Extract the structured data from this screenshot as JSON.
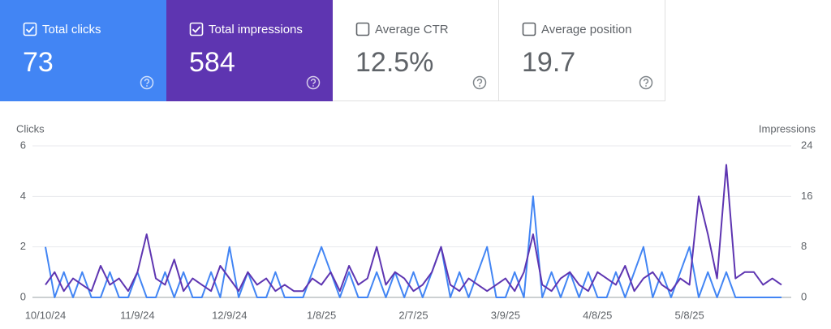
{
  "metrics": [
    {
      "label": "Total clicks",
      "value": "73",
      "checked": true,
      "color": "#4285f4"
    },
    {
      "label": "Total impressions",
      "value": "584",
      "checked": true,
      "color": "#5e35b1"
    },
    {
      "label": "Average CTR",
      "value": "12.5%",
      "checked": false,
      "color": "#ffffff"
    },
    {
      "label": "Average position",
      "value": "19.7",
      "checked": false,
      "color": "#ffffff"
    }
  ],
  "chart_data": {
    "type": "line",
    "y_label": "Clicks",
    "y2_label": "Impressions",
    "x": [
      "10/10/24",
      "10/13/24",
      "10/16/24",
      "10/19/24",
      "10/22/24",
      "10/25/24",
      "10/28/24",
      "10/31/24",
      "11/3/24",
      "11/6/24",
      "11/9/24",
      "11/12/24",
      "11/15/24",
      "11/18/24",
      "11/21/24",
      "11/24/24",
      "11/27/24",
      "11/30/24",
      "12/3/24",
      "12/6/24",
      "12/9/24",
      "12/12/24",
      "12/15/24",
      "12/18/24",
      "12/21/24",
      "12/24/24",
      "12/27/24",
      "12/30/24",
      "1/2/25",
      "1/5/25",
      "1/8/25",
      "1/11/25",
      "1/14/25",
      "1/17/25",
      "1/20/25",
      "1/23/25",
      "1/26/25",
      "1/29/25",
      "2/1/25",
      "2/4/25",
      "2/7/25",
      "2/10/25",
      "2/13/25",
      "2/16/25",
      "2/19/25",
      "2/22/25",
      "2/25/25",
      "2/28/25",
      "3/3/25",
      "3/6/25",
      "3/9/25",
      "3/12/25",
      "3/15/25",
      "3/18/25",
      "3/21/25",
      "3/24/25",
      "3/27/25",
      "3/30/25",
      "4/2/25",
      "4/5/25",
      "4/8/25",
      "4/11/25",
      "4/14/25",
      "4/17/25",
      "4/20/25",
      "4/23/25",
      "4/26/25",
      "4/29/25",
      "5/2/25",
      "5/5/25",
      "5/8/25",
      "5/11/25",
      "5/14/25",
      "5/17/25",
      "5/20/25",
      "5/23/25",
      "5/26/25",
      "5/29/25",
      "6/1/25",
      "6/4/25",
      "6/7/25"
    ],
    "xlim": [
      "10/10/24",
      "6/7/25"
    ],
    "xticks": [
      "10/10/24",
      "11/9/24",
      "12/9/24",
      "1/8/25",
      "2/7/25",
      "3/9/25",
      "4/8/25",
      "5/8/25"
    ],
    "ylim": [
      0,
      6
    ],
    "yticks": [
      0,
      2,
      4,
      6
    ],
    "y2lim": [
      0,
      24
    ],
    "y2ticks": [
      0,
      8,
      16,
      24
    ],
    "grid": true,
    "series": [
      {
        "color": "#4285f4",
        "values": [
          2,
          0,
          1,
          0,
          1,
          0,
          0,
          1,
          0,
          0,
          1,
          0,
          0,
          1,
          0,
          1,
          0,
          0,
          1,
          0,
          2,
          0,
          1,
          0,
          0,
          1,
          0,
          0,
          0,
          1,
          2,
          1,
          0,
          1,
          0,
          0,
          1,
          0,
          1,
          0,
          1,
          0,
          1,
          2,
          0,
          1,
          0,
          1,
          2,
          0,
          0,
          1,
          0,
          4,
          0,
          1,
          0,
          1,
          0,
          1,
          0,
          0,
          1,
          0,
          1,
          2,
          0,
          1,
          0,
          1,
          2,
          0,
          1,
          0,
          1,
          0,
          0,
          0,
          0,
          0,
          0
        ]
      },
      {
        "color": "#5e35b1",
        "axis": "y2",
        "values": [
          2,
          4,
          1,
          3,
          2,
          1,
          5,
          2,
          3,
          1,
          4,
          10,
          3,
          2,
          6,
          1,
          3,
          2,
          1,
          5,
          3,
          1,
          4,
          2,
          3,
          1,
          2,
          1,
          1,
          3,
          2,
          4,
          1,
          5,
          2,
          3,
          8,
          2,
          4,
          3,
          1,
          2,
          4,
          8,
          2,
          1,
          3,
          2,
          1,
          2,
          3,
          1,
          4,
          10,
          2,
          1,
          3,
          4,
          2,
          1,
          4,
          3,
          2,
          5,
          1,
          3,
          4,
          2,
          1,
          3,
          2,
          16,
          10,
          3,
          21,
          3,
          4,
          4,
          2,
          3,
          2
        ]
      }
    ]
  }
}
